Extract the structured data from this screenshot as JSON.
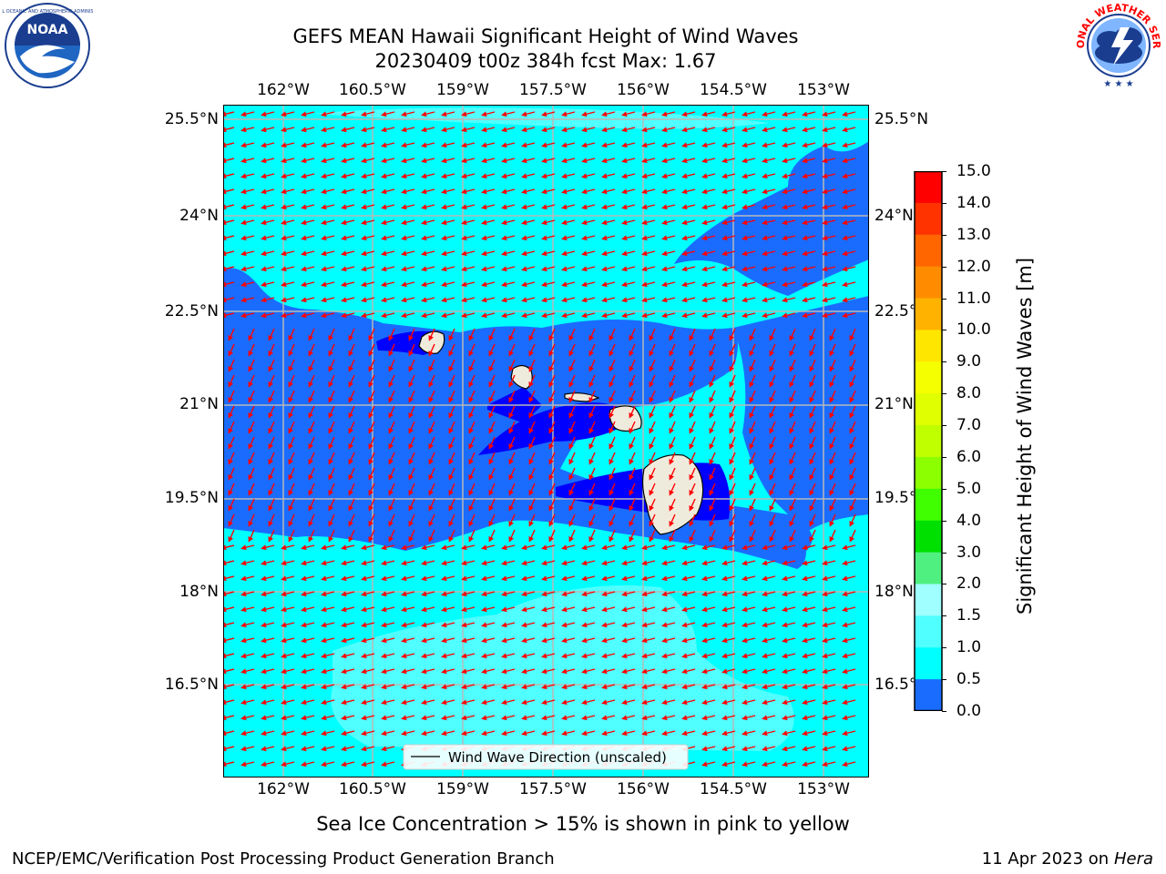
{
  "title": {
    "line1": "GEFS MEAN Hawaii Significant Height of Wind Waves",
    "line2": "20230409 t00z 384h fcst   Max: 1.67"
  },
  "logos": {
    "left": {
      "icon": "noaa-logo",
      "text": "NOAA"
    },
    "right": {
      "icon": "nws-logo",
      "text": "NATIONAL WEATHER SERVICE"
    }
  },
  "map": {
    "lon_ticks": [
      "162°W",
      "160.5°W",
      "159°W",
      "157.5°W",
      "156°W",
      "154.5°W",
      "153°W"
    ],
    "lat_ticks": [
      "25.5°N",
      "24°N",
      "22.5°N",
      "21°N",
      "19.5°N",
      "18°N",
      "16.5°N"
    ],
    "legend_label": "Wind Wave Direction (unscaled)",
    "colors": {
      "land": "#efebdc",
      "coast": "#000000",
      "grid": "#b8b8b8",
      "arrows": "#ff0000",
      "sea_0_0.5": "#0000ff",
      "sea_0.5_1.0": "#1a6cff",
      "sea_1.0_1.5": "#00ffff",
      "sea_1.5_2.0": "#50ffff"
    }
  },
  "colorbar": {
    "label": "Significant Height of Wind Waves [m]",
    "ticks": [
      "15.0",
      "14.0",
      "13.0",
      "12.0",
      "11.0",
      "10.0",
      "9.0",
      "8.0",
      "7.0",
      "6.0",
      "5.0",
      "4.0",
      "3.0",
      "2.0",
      "1.5",
      "1.0",
      "0.5",
      "0.0"
    ],
    "colors": [
      "#ff0000",
      "#ff3300",
      "#ff6600",
      "#ff8c00",
      "#ffb300",
      "#ffe600",
      "#f5ff00",
      "#e0ff00",
      "#c0ff00",
      "#8cff00",
      "#40ff00",
      "#00e000",
      "#50f080",
      "#a0ffff",
      "#50ffff",
      "#00ffff",
      "#1a6cff",
      "#0000ff"
    ]
  },
  "caption": "Sea Ice Concentration > 15% is shown in pink to yellow",
  "footer": {
    "left": "NCEP/EMC/Verification Post Processing Product Generation Branch",
    "right_prefix": "11 Apr 2023 on ",
    "right_host": "Hera"
  }
}
